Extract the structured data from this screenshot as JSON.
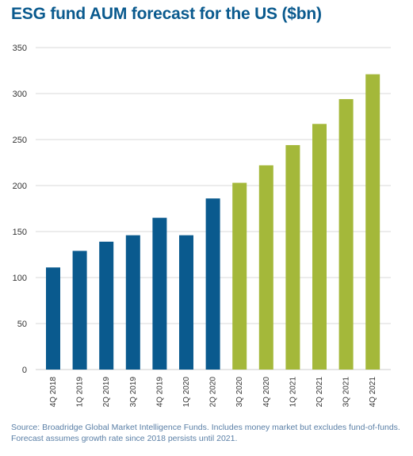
{
  "title": "ESG fund AUM forecast for the US ($bn)",
  "source_line1": "Source: Broadridge Global Market Intelligence Funds. Includes money market but excludes fund-of-funds.",
  "source_line2": "Forecast assumes growth rate since 2018 persists until 2021.",
  "colors": {
    "actual": "#0a5a8e",
    "forecast": "#a4b83a",
    "grid": "#cccccc"
  },
  "chart_data": {
    "type": "bar",
    "title": "ESG fund AUM forecast for the US ($bn)",
    "xlabel": "",
    "ylabel": "",
    "ylim": [
      0,
      350
    ],
    "yticks": [
      0,
      50,
      100,
      150,
      200,
      250,
      300,
      350
    ],
    "grid": true,
    "categories": [
      "4Q 2018",
      "1Q 2019",
      "2Q 2019",
      "3Q 2019",
      "4Q 2019",
      "1Q 2020",
      "2Q 2020",
      "3Q 2020",
      "4Q 2020",
      "1Q 2021",
      "2Q 2021",
      "3Q 2021",
      "4Q 2021"
    ],
    "values": [
      111,
      129,
      139,
      146,
      165,
      146,
      186,
      203,
      222,
      244,
      267,
      294,
      321
    ],
    "bar_kind": [
      "actual",
      "actual",
      "actual",
      "actual",
      "actual",
      "actual",
      "actual",
      "forecast",
      "forecast",
      "forecast",
      "forecast",
      "forecast",
      "forecast"
    ]
  }
}
